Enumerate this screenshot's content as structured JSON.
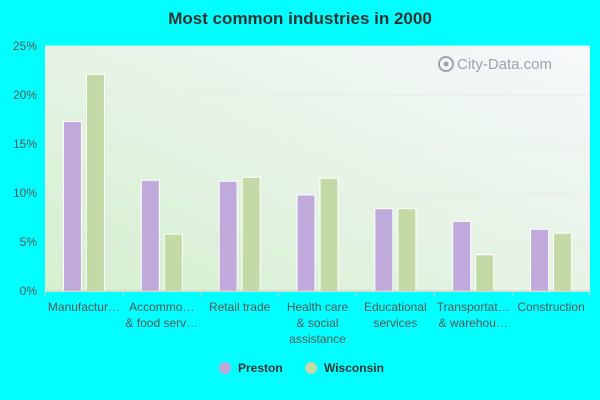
{
  "chart_data": {
    "type": "bar",
    "title": "Most common industries in 2000",
    "categories": [
      [
        "Manufactur…"
      ],
      [
        "Accommo…",
        "& food serv…"
      ],
      [
        "Retail trade"
      ],
      [
        "Health care",
        "& social",
        "assistance"
      ],
      [
        "Educational",
        "services"
      ],
      [
        "Transportat…",
        "& warehou…"
      ],
      [
        "Construction"
      ]
    ],
    "series": [
      {
        "name": "Preston",
        "values": [
          17.3,
          11.3,
          11.2,
          9.8,
          8.4,
          7.1,
          6.3
        ]
      },
      {
        "name": "Wisconsin",
        "values": [
          22.1,
          5.8,
          11.6,
          11.5,
          8.4,
          3.7,
          5.9
        ]
      }
    ],
    "ylim": [
      0,
      25
    ],
    "yticks": [
      "0%",
      "5%",
      "10%",
      "15%",
      "20%",
      "25%"
    ],
    "xlabel": "",
    "ylabel": "",
    "grid": true,
    "legend_position": "bottom-center",
    "watermark": "City-Data.com",
    "colors": {
      "page_background": "#00ffff",
      "Preston": "#c0a9db",
      "Wisconsin": "#c3d9a6",
      "plot_bg_light": "#f7f8fc",
      "plot_bg_green": "#d9f0d4",
      "gridline": "#e7ece6",
      "axis": "#cccccc",
      "text": "#555555",
      "title": "#333333"
    }
  }
}
